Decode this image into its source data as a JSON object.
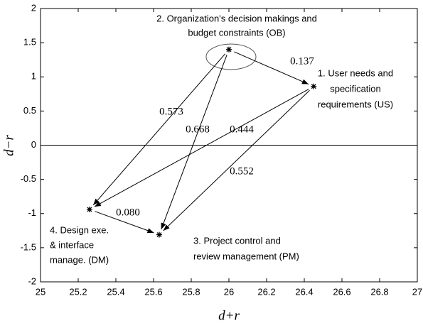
{
  "chart_data": {
    "type": "scatter",
    "xlabel": "d+r",
    "ylabel": "d−r",
    "x": [
      26.0,
      26.45,
      25.26,
      25.63
    ],
    "y": [
      1.4,
      0.86,
      -0.94,
      -1.31
    ],
    "point_labels": [
      [
        "2. Organization's decision makings and",
        "budget constraints (OB)"
      ],
      [
        "1. User needs and",
        "specification",
        "requirements (US)"
      ],
      [
        "4. Design exe.",
        "& interface",
        "manage. (DM)"
      ],
      [
        "3. Project control and",
        "review management (PM)"
      ]
    ],
    "arrows": {
      "from": [
        0,
        0,
        0,
        1,
        1,
        2
      ],
      "to": [
        1,
        2,
        3,
        2,
        3,
        3
      ],
      "values": [
        0.137,
        0.573,
        0.668,
        0.444,
        0.552,
        0.08
      ],
      "value_labels": [
        "0.137",
        "0.573",
        "0.668",
        "0.444",
        "0.552",
        "0.080"
      ]
    },
    "hline": 0,
    "xlim": [
      25,
      27
    ],
    "xticks": [
      25,
      25.2,
      25.4,
      25.6,
      25.8,
      26,
      26.2,
      26.4,
      26.6,
      26.8,
      27
    ],
    "ylim": [
      -2,
      2
    ],
    "yticks": [
      -2,
      -1.5,
      -1,
      -0.5,
      0,
      0.5,
      1,
      1.5,
      2
    ],
    "color": "#000000"
  }
}
